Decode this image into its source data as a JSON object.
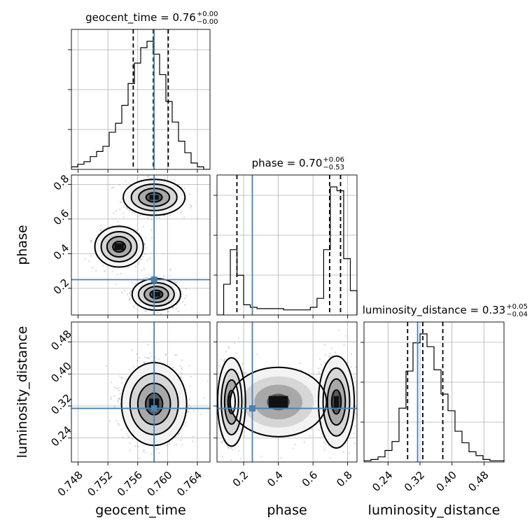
{
  "chart_data": {
    "type": "corner",
    "parameters": [
      "geocent_time",
      "phase",
      "luminosity_distance"
    ],
    "axis_labels": {
      "geocent_time": "geocent_time",
      "phase": "phase",
      "luminosity_distance": "luminosity_distance"
    },
    "ranges": {
      "geocent_time": [
        0.7471,
        0.7657
      ],
      "phase": [
        0.046,
        0.854
      ],
      "luminosity_distance": [
        0.18,
        0.53
      ]
    },
    "ticks": {
      "geocent_time": [
        "0.748",
        "0.752",
        "0.756",
        "0.760",
        "0.764"
      ],
      "phase": [
        "0.2",
        "0.4",
        "0.6",
        "0.8"
      ],
      "luminosity_distance": [
        "0.24",
        "0.32",
        "0.40",
        "0.48"
      ]
    },
    "titles": [
      {
        "param": "geocent_time",
        "name": "geocent_time",
        "median": "0.76",
        "plus": "+0.00",
        "minus": "−0.00"
      },
      {
        "param": "phase",
        "name": "phase",
        "median": "0.70",
        "plus": "+0.06",
        "minus": "−0.53"
      },
      {
        "param": "luminosity_distance",
        "name": "luminosity_distance",
        "median": "0.33",
        "plus": "+0.05",
        "minus": "−0.04"
      }
    ],
    "truths": {
      "geocent_time": 0.7582,
      "phase": 0.25,
      "luminosity_distance": 0.314
    },
    "quantiles": {
      "geocent_time": [
        0.7554,
        0.7581,
        0.7601
      ],
      "phase": [
        0.161,
        0.696,
        0.759
      ],
      "luminosity_distance": [
        0.289,
        0.327,
        0.377
      ]
    },
    "histograms": {
      "geocent_time": [
        0.02,
        0.04,
        0.06,
        0.1,
        0.14,
        0.18,
        0.29,
        0.36,
        0.5,
        0.67,
        0.83,
        0.95,
        1.0,
        0.9,
        0.74,
        0.53,
        0.37,
        0.22,
        0.13,
        0.05,
        0.02,
        0.0
      ],
      "phase": [
        0.0,
        0.24,
        0.51,
        0.31,
        0.08,
        0.06,
        0.05,
        0.05,
        0.05,
        0.05,
        0.04,
        0.04,
        0.04,
        0.04,
        0.06,
        0.13,
        0.51,
        1.0,
        0.97,
        0.44,
        0.19
      ],
      "luminosity_distance": [
        0.01,
        0.02,
        0.04,
        0.09,
        0.16,
        0.42,
        0.71,
        0.93,
        1.0,
        0.9,
        0.72,
        0.53,
        0.4,
        0.24,
        0.15,
        0.08,
        0.05,
        0.02,
        0.01,
        0.01
      ]
    },
    "grid": true
  }
}
